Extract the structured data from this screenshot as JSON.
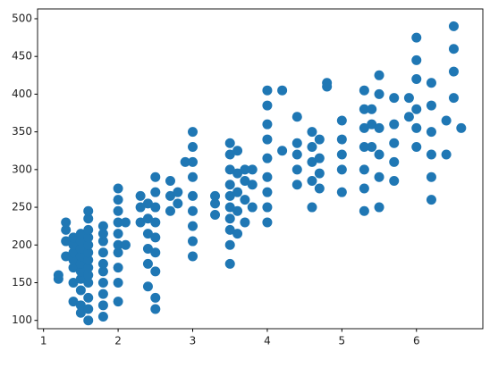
{
  "chart_data": {
    "type": "scatter",
    "color": "#1f77b4",
    "x": [
      1.2,
      1.2,
      1.3,
      1.3,
      1.3,
      1.3,
      1.4,
      1.4,
      1.4,
      1.4,
      1.4,
      1.4,
      1.4,
      1.5,
      1.5,
      1.5,
      1.5,
      1.5,
      1.5,
      1.5,
      1.5,
      1.5,
      1.5,
      1.6,
      1.6,
      1.6,
      1.6,
      1.6,
      1.6,
      1.6,
      1.6,
      1.6,
      1.6,
      1.6,
      1.6,
      1.6,
      1.8,
      1.8,
      1.8,
      1.8,
      1.8,
      1.8,
      1.8,
      1.8,
      1.8,
      1.8,
      2.0,
      2.0,
      2.0,
      2.0,
      2.0,
      2.0,
      2.0,
      2.0,
      2.0,
      2.0,
      2.1,
      2.1,
      2.3,
      2.3,
      2.3,
      2.4,
      2.4,
      2.4,
      2.4,
      2.4,
      2.4,
      2.5,
      2.5,
      2.5,
      2.5,
      2.5,
      2.5,
      2.5,
      2.5,
      2.5,
      2.7,
      2.7,
      2.7,
      2.8,
      2.8,
      2.9,
      3.0,
      3.0,
      3.0,
      3.0,
      3.0,
      3.0,
      3.0,
      3.0,
      3.0,
      3.3,
      3.3,
      3.3,
      3.5,
      3.5,
      3.5,
      3.5,
      3.5,
      3.5,
      3.5,
      3.5,
      3.5,
      3.5,
      3.6,
      3.6,
      3.6,
      3.6,
      3.6,
      3.7,
      3.7,
      3.7,
      3.7,
      3.8,
      3.8,
      3.8,
      4.0,
      4.0,
      4.0,
      4.0,
      4.0,
      4.0,
      4.0,
      4.0,
      4.0,
      4.2,
      4.2,
      4.4,
      4.4,
      4.4,
      4.4,
      4.4,
      4.6,
      4.6,
      4.6,
      4.6,
      4.6,
      4.7,
      4.7,
      4.7,
      4.7,
      4.8,
      4.8,
      5.0,
      5.0,
      5.0,
      5.0,
      5.0,
      5.3,
      5.3,
      5.3,
      5.3,
      5.3,
      5.3,
      5.3,
      5.4,
      5.4,
      5.4,
      5.5,
      5.5,
      5.5,
      5.5,
      5.5,
      5.5,
      5.7,
      5.7,
      5.7,
      5.7,
      5.7,
      5.9,
      5.9,
      6.0,
      6.0,
      6.0,
      6.0,
      6.0,
      6.0,
      6.2,
      6.2,
      6.2,
      6.2,
      6.2,
      6.2,
      6.4,
      6.4,
      6.5,
      6.5,
      6.5,
      6.5,
      6.6
    ],
    "values": [
      155,
      160,
      205,
      220,
      230,
      185,
      125,
      150,
      170,
      180,
      190,
      200,
      210,
      120,
      140,
      155,
      165,
      175,
      185,
      195,
      205,
      215,
      110,
      100,
      115,
      130,
      150,
      160,
      170,
      180,
      190,
      200,
      210,
      220,
      235,
      245,
      105,
      120,
      135,
      150,
      165,
      175,
      190,
      205,
      215,
      225,
      125,
      150,
      170,
      190,
      200,
      215,
      230,
      245,
      260,
      275,
      200,
      230,
      230,
      250,
      265,
      145,
      175,
      195,
      215,
      235,
      255,
      115,
      130,
      165,
      190,
      210,
      230,
      250,
      270,
      290,
      245,
      265,
      285,
      255,
      270,
      310,
      185,
      205,
      225,
      245,
      265,
      290,
      310,
      330,
      350,
      240,
      255,
      265,
      175,
      200,
      220,
      235,
      250,
      265,
      280,
      300,
      320,
      335,
      215,
      245,
      270,
      295,
      325,
      230,
      260,
      285,
      300,
      250,
      280,
      300,
      230,
      250,
      270,
      290,
      315,
      340,
      360,
      385,
      405,
      325,
      405,
      280,
      300,
      320,
      335,
      370,
      250,
      285,
      310,
      330,
      350,
      275,
      295,
      315,
      340,
      410,
      415,
      270,
      300,
      320,
      340,
      365,
      245,
      275,
      300,
      330,
      355,
      380,
      405,
      380,
      360,
      330,
      250,
      290,
      320,
      355,
      400,
      425,
      285,
      310,
      335,
      360,
      395,
      395,
      370,
      330,
      355,
      380,
      420,
      445,
      475,
      260,
      290,
      320,
      350,
      385,
      415,
      320,
      365,
      395,
      430,
      460,
      490,
      355
    ],
    "xlim": [
      0.92,
      6.89
    ],
    "ylim": [
      89,
      513
    ],
    "xticks": [
      1,
      2,
      3,
      4,
      5,
      6
    ],
    "yticks": [
      100,
      150,
      200,
      250,
      300,
      350,
      400,
      450,
      500
    ]
  }
}
